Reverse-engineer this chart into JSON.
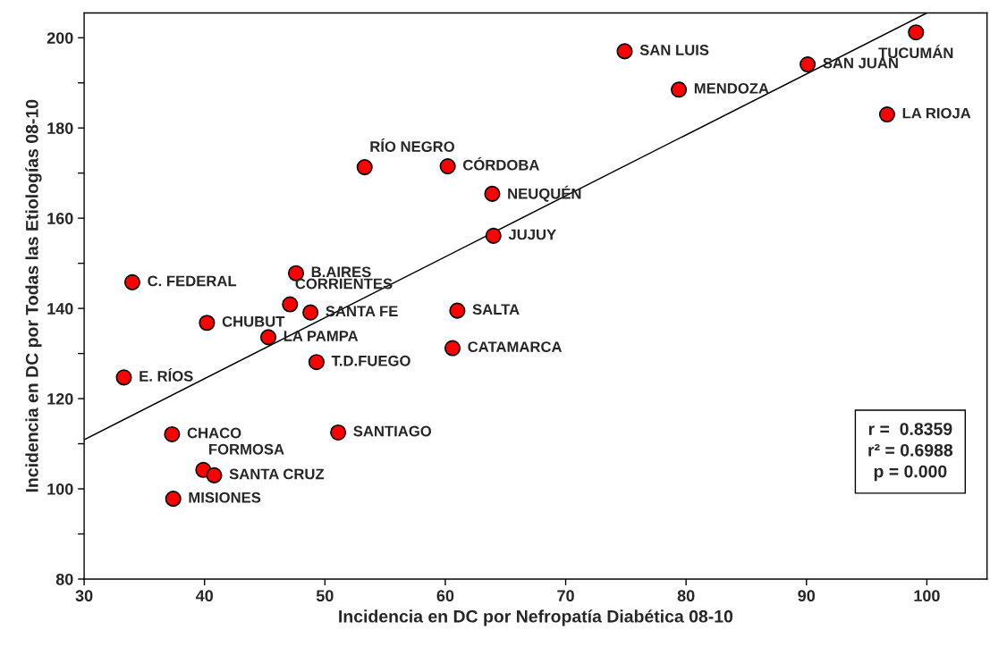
{
  "chart_data": {
    "type": "scatter",
    "xlabel": "Incidencia en DC por Nefropatía Diabética 08-10",
    "ylabel": "Incidencia en DC por Todas las Etiologías 08-10",
    "xlim": [
      30,
      105
    ],
    "ylim": [
      80,
      205.5
    ],
    "xticks": [
      30,
      40,
      50,
      60,
      70,
      80,
      90,
      100
    ],
    "yticks": [
      80,
      {
        "value": 90,
        "label": null
      },
      100,
      {
        "value": 110,
        "label": null
      },
      120,
      {
        "value": 130,
        "label": null
      },
      140,
      {
        "value": 150,
        "label": null
      },
      160,
      {
        "value": 170,
        "label": null
      },
      180,
      {
        "value": 190,
        "label": null
      },
      200
    ],
    "grid": false,
    "marker": "circle",
    "series": [
      {
        "color": "#ff0000",
        "x": [
          74.9,
          99.1,
          90.1,
          79.4,
          96.7,
          53.3,
          60.2,
          63.9,
          64.0,
          47.6,
          34.0,
          47.1,
          48.8,
          61.0,
          40.2,
          45.3,
          60.6,
          49.3,
          33.3,
          37.3,
          51.1,
          39.9,
          40.8,
          37.4
        ],
        "values": [
          197.0,
          201.2,
          194.1,
          188.5,
          183.0,
          171.3,
          171.5,
          165.4,
          156.1,
          147.8,
          145.8,
          140.9,
          139.1,
          139.5,
          136.8,
          133.6,
          131.2,
          128.1,
          124.7,
          112.1,
          112.5,
          104.2,
          103.0,
          97.8
        ]
      },
      {
        "type": "line",
        "marker": "none",
        "color": "#000000",
        "x": [
          30,
          100
        ],
        "values": [
          110.9,
          205.5
        ]
      }
    ],
    "annotations": [
      {
        "text": "SAN LUIS",
        "x": 74.9,
        "y": 197.0
      },
      {
        "text": "TUCUMÁN",
        "x": 99.1,
        "y": 201.2
      },
      {
        "text": "SAN JUAN",
        "x": 90.1,
        "y": 194.1
      },
      {
        "text": "MENDOZA",
        "x": 79.4,
        "y": 188.5
      },
      {
        "text": "LA RIOJA",
        "x": 96.7,
        "y": 183.0
      },
      {
        "text": "RÍO NEGRO",
        "x": 53.3,
        "y": 171.3
      },
      {
        "text": "CÓRDOBA",
        "x": 60.2,
        "y": 171.5
      },
      {
        "text": "NEUQUÉN",
        "x": 63.9,
        "y": 165.4
      },
      {
        "text": "JUJUY",
        "x": 64.0,
        "y": 156.1
      },
      {
        "text": "B.AIRES",
        "x": 47.6,
        "y": 147.8
      },
      {
        "text": "C. FEDERAL",
        "x": 34.0,
        "y": 145.8
      },
      {
        "text": "CORRIENTES",
        "x": 47.1,
        "y": 140.9
      },
      {
        "text": "SANTA FE",
        "x": 48.8,
        "y": 139.1
      },
      {
        "text": "SALTA",
        "x": 61.0,
        "y": 139.5
      },
      {
        "text": "CHUBUT",
        "x": 40.2,
        "y": 136.8
      },
      {
        "text": "LA PAMPA",
        "x": 45.3,
        "y": 133.6
      },
      {
        "text": "CATAMARCA",
        "x": 60.6,
        "y": 131.2
      },
      {
        "text": "T.D.FUEGO",
        "x": 49.3,
        "y": 128.1
      },
      {
        "text": "E. RÍOS",
        "x": 33.3,
        "y": 124.7
      },
      {
        "text": "CHACO",
        "x": 37.3,
        "y": 112.1
      },
      {
        "text": "SANTIAGO",
        "x": 51.1,
        "y": 112.5
      },
      {
        "text": "FORMOSA",
        "x": 39.9,
        "y": 104.2
      },
      {
        "text": "SANTA CRUZ",
        "x": 40.8,
        "y": 103.0
      },
      {
        "text": "MISIONES",
        "x": 37.4,
        "y": 97.8
      },
      "r =  0.8359\nr² = 0.6988\np = 0.000"
    ]
  }
}
